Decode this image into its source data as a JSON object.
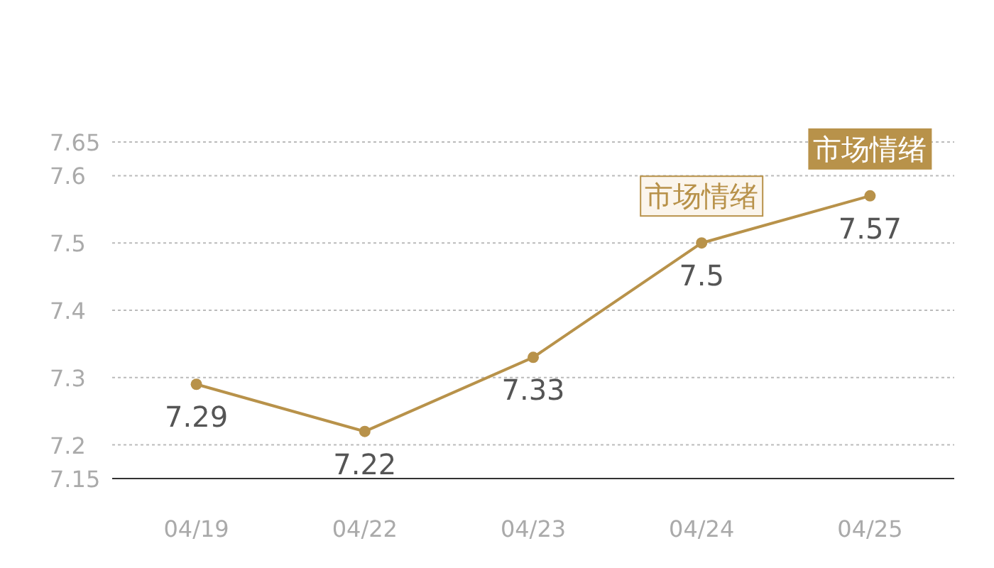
{
  "chart_data": {
    "type": "line",
    "categories": [
      "04/19",
      "04/22",
      "04/23",
      "04/24",
      "04/25"
    ],
    "series": [
      {
        "color": "#b8924a",
        "values": [
          7.29,
          7.22,
          7.33,
          7.5,
          7.57
        ]
      }
    ],
    "ylim": [
      7.15,
      7.65
    ],
    "yticks": [
      7.15,
      7.2,
      7.3,
      7.4,
      7.5,
      7.6,
      7.65
    ],
    "grid": "y",
    "marker": "circle",
    "line_style": "solid",
    "data_labels": true,
    "annotations": [
      {
        "text": "市场情绪",
        "x": "04/24",
        "y": 7.5
      },
      {
        "text": "市场情绪",
        "x": "04/25",
        "y": 7.57
      }
    ]
  }
}
